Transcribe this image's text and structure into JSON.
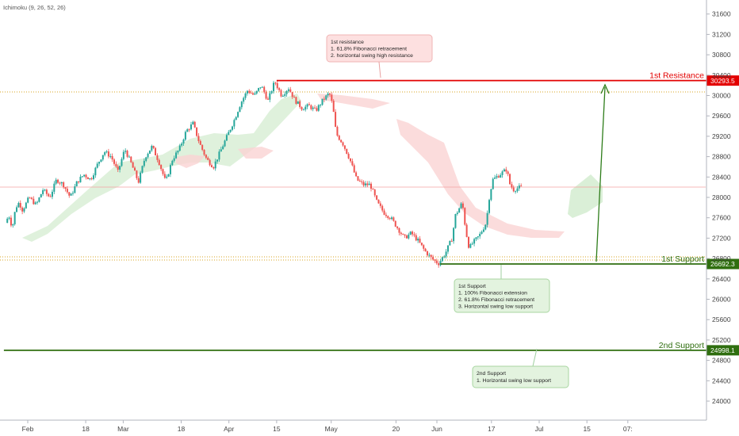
{
  "indicator": "Ichimoku (9, 26, 52, 26)",
  "chart_data": {
    "type": "candlestick",
    "y_ticks": [
      31600,
      31200,
      30800,
      30400,
      30000,
      29600,
      29200,
      28800,
      28400,
      28000,
      27600,
      27200,
      26800,
      26400,
      26000,
      25600,
      25200,
      24800,
      24400,
      24000
    ],
    "ylim": [
      23650,
      31950
    ],
    "x_labels": [
      {
        "label": "Feb",
        "day": 0
      },
      {
        "label": "18",
        "day": 17
      },
      {
        "label": "Mar",
        "day": 28
      },
      {
        "label": "18",
        "day": 45
      },
      {
        "label": "Apr",
        "day": 59
      },
      {
        "label": "15",
        "day": 73
      },
      {
        "label": "May",
        "day": 89
      },
      {
        "label": "20",
        "day": 108
      },
      {
        "label": "Jun",
        "day": 120
      },
      {
        "label": "17",
        "day": 136
      },
      {
        "label": "Jul",
        "day": 150
      },
      {
        "label": "15",
        "day": 164
      },
      {
        "label": "07:",
        "day": 176
      }
    ],
    "price_path": [
      [
        -6,
        27500
      ],
      [
        -5,
        27650
      ],
      [
        -4,
        27400
      ],
      [
        -3,
        27800
      ],
      [
        -2,
        27900
      ],
      [
        -1,
        27750
      ],
      [
        1,
        28000
      ],
      [
        3,
        27850
      ],
      [
        5,
        28150
      ],
      [
        7,
        28000
      ],
      [
        9,
        28350
      ],
      [
        11,
        28250
      ],
      [
        13,
        28000
      ],
      [
        15,
        28300
      ],
      [
        17,
        28450
      ],
      [
        19,
        28350
      ],
      [
        21,
        28650
      ],
      [
        23,
        28900
      ],
      [
        25,
        28800
      ],
      [
        27,
        28500
      ],
      [
        29,
        28950
      ],
      [
        31,
        28650
      ],
      [
        33,
        28300
      ],
      [
        35,
        28800
      ],
      [
        37,
        29000
      ],
      [
        39,
        28700
      ],
      [
        41,
        28300
      ],
      [
        43,
        28750
      ],
      [
        45,
        28950
      ],
      [
        47,
        29300
      ],
      [
        49,
        29450
      ],
      [
        51,
        29050
      ],
      [
        53,
        28750
      ],
      [
        55,
        28600
      ],
      [
        57,
        28900
      ],
      [
        59,
        29200
      ],
      [
        61,
        29500
      ],
      [
        63,
        29850
      ],
      [
        65,
        30100
      ],
      [
        67,
        30000
      ],
      [
        69,
        30200
      ],
      [
        71,
        29900
      ],
      [
        73,
        30280
      ],
      [
        75,
        30000
      ],
      [
        77,
        30150
      ],
      [
        79,
        29900
      ],
      [
        81,
        29750
      ],
      [
        83,
        29800
      ],
      [
        85,
        29700
      ],
      [
        87,
        29900
      ],
      [
        89,
        30050
      ],
      [
        90,
        29800
      ],
      [
        91,
        29250
      ],
      [
        93,
        29050
      ],
      [
        95,
        28750
      ],
      [
        97,
        28350
      ],
      [
        99,
        28250
      ],
      [
        101,
        28250
      ],
      [
        103,
        27900
      ],
      [
        105,
        27700
      ],
      [
        107,
        27600
      ],
      [
        109,
        27400
      ],
      [
        111,
        27200
      ],
      [
        113,
        27300
      ],
      [
        115,
        27150
      ],
      [
        117,
        26950
      ],
      [
        119,
        26800
      ],
      [
        121,
        26700
      ],
      [
        123,
        26900
      ],
      [
        125,
        27200
      ],
      [
        126,
        27650
      ],
      [
        128,
        27900
      ],
      [
        129,
        27350
      ],
      [
        130,
        27000
      ],
      [
        131,
        27100
      ],
      [
        133,
        27250
      ],
      [
        135,
        27500
      ],
      [
        136,
        28050
      ],
      [
        137,
        28350
      ],
      [
        139,
        28450
      ],
      [
        141,
        28550
      ],
      [
        142,
        28250
      ],
      [
        143,
        28150
      ],
      [
        145,
        28200
      ]
    ],
    "levels": [
      {
        "label": "1st Resistance",
        "value": "30293.5",
        "color": "#e30000",
        "day_start": 73
      },
      {
        "label": "1st Support",
        "value": "26692.3",
        "color": "#2f6e0f",
        "day_start": 121
      },
      {
        "label": "2nd Support",
        "value": "24998.1",
        "color": "#2f6e0f",
        "day_start": -7
      }
    ],
    "annotations": [
      {
        "lines": [
          "1st resistance",
          "1. 61.8% Fibonacci retracement",
          "2. horizontal swing high resistance"
        ],
        "color": "red"
      },
      {
        "lines": [
          "1st Support",
          "1. 100% Fibonacci extension",
          "2. 61.8% Fibonacci retracement",
          "3. Horizontal swing low support"
        ],
        "color": "green"
      },
      {
        "lines": [
          "2nd Support",
          "1.  Horizontal swing low support"
        ],
        "color": "green"
      }
    ],
    "colors": {
      "up": "#26a69a",
      "down": "#ef5350",
      "cloud_up": "#d4ecd0",
      "cloud_down": "#fad3d3",
      "resistance": "#e30000",
      "support": "#2f6e0f",
      "arrow": "#2e7d1a"
    }
  }
}
